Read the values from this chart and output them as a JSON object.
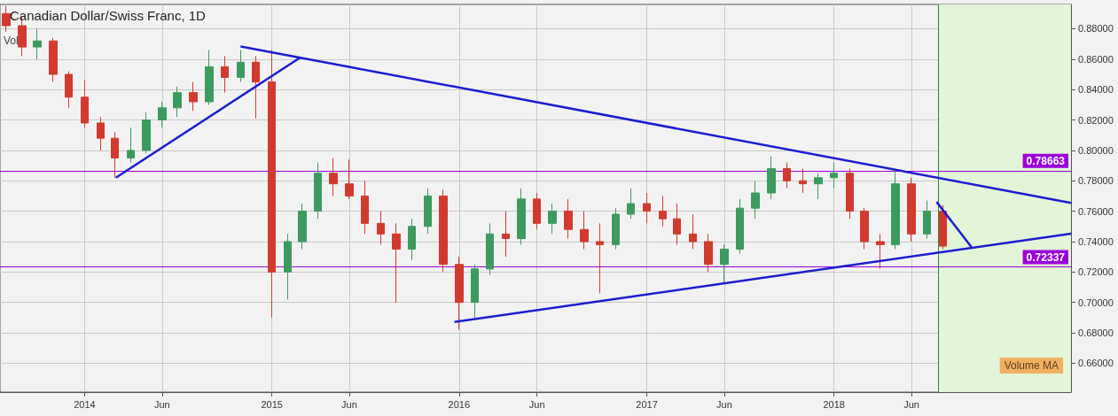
{
  "chart_data": {
    "type": "candlestick",
    "title": "Canadian Dollar/Swiss Franc, 1D",
    "x": [
      "2013-08",
      "2013-09",
      "2013-10",
      "2013-11",
      "2013-12",
      "2014-01",
      "2014-02",
      "2014-03",
      "2014-04",
      "2014-05",
      "2014-06",
      "2014-07",
      "2014-08",
      "2014-09",
      "2014-10",
      "2014-11",
      "2014-12",
      "2015-01",
      "2015-02",
      "2015-03",
      "2015-04",
      "2015-05",
      "2015-06",
      "2015-07",
      "2015-08",
      "2015-09",
      "2015-10",
      "2015-11",
      "2015-12",
      "2016-01",
      "2016-02",
      "2016-03",
      "2016-04",
      "2016-05",
      "2016-06",
      "2016-07",
      "2016-08",
      "2016-09",
      "2016-10",
      "2016-11",
      "2016-12",
      "2017-01",
      "2017-02",
      "2017-03",
      "2017-04",
      "2017-05",
      "2017-06",
      "2017-07",
      "2017-08",
      "2017-09",
      "2017-10",
      "2017-11",
      "2017-12",
      "2018-01",
      "2018-02",
      "2018-03",
      "2018-04",
      "2018-05",
      "2018-06",
      "2018-07",
      "2018-08"
    ],
    "ohlc": [
      [
        0.89,
        0.895,
        0.878,
        0.882
      ],
      [
        0.882,
        0.888,
        0.862,
        0.868
      ],
      [
        0.868,
        0.88,
        0.86,
        0.872
      ],
      [
        0.872,
        0.874,
        0.845,
        0.85
      ],
      [
        0.85,
        0.852,
        0.828,
        0.835
      ],
      [
        0.835,
        0.846,
        0.815,
        0.818
      ],
      [
        0.818,
        0.822,
        0.8,
        0.808
      ],
      [
        0.808,
        0.812,
        0.782,
        0.795
      ],
      [
        0.795,
        0.815,
        0.792,
        0.8
      ],
      [
        0.8,
        0.825,
        0.798,
        0.82
      ],
      [
        0.82,
        0.832,
        0.815,
        0.828
      ],
      [
        0.828,
        0.842,
        0.822,
        0.838
      ],
      [
        0.838,
        0.845,
        0.826,
        0.832
      ],
      [
        0.832,
        0.866,
        0.83,
        0.855
      ],
      [
        0.855,
        0.862,
        0.838,
        0.848
      ],
      [
        0.848,
        0.866,
        0.845,
        0.858
      ],
      [
        0.858,
        0.862,
        0.821,
        0.845
      ],
      [
        0.845,
        0.866,
        0.69,
        0.72
      ],
      [
        0.72,
        0.745,
        0.702,
        0.74
      ],
      [
        0.74,
        0.765,
        0.735,
        0.76
      ],
      [
        0.76,
        0.792,
        0.755,
        0.785
      ],
      [
        0.785,
        0.795,
        0.77,
        0.778
      ],
      [
        0.778,
        0.794,
        0.768,
        0.77
      ],
      [
        0.77,
        0.78,
        0.745,
        0.752
      ],
      [
        0.752,
        0.76,
        0.738,
        0.745
      ],
      [
        0.745,
        0.752,
        0.7,
        0.735
      ],
      [
        0.735,
        0.755,
        0.728,
        0.75
      ],
      [
        0.75,
        0.775,
        0.745,
        0.77
      ],
      [
        0.77,
        0.774,
        0.72,
        0.725
      ],
      [
        0.725,
        0.73,
        0.682,
        0.7
      ],
      [
        0.7,
        0.725,
        0.69,
        0.722
      ],
      [
        0.722,
        0.752,
        0.718,
        0.745
      ],
      [
        0.745,
        0.76,
        0.73,
        0.742
      ],
      [
        0.742,
        0.775,
        0.738,
        0.768
      ],
      [
        0.768,
        0.772,
        0.748,
        0.752
      ],
      [
        0.752,
        0.765,
        0.745,
        0.76
      ],
      [
        0.76,
        0.768,
        0.742,
        0.748
      ],
      [
        0.748,
        0.76,
        0.735,
        0.74
      ],
      [
        0.74,
        0.752,
        0.706,
        0.738
      ],
      [
        0.738,
        0.762,
        0.735,
        0.758
      ],
      [
        0.758,
        0.775,
        0.755,
        0.765
      ],
      [
        0.765,
        0.772,
        0.752,
        0.76
      ],
      [
        0.76,
        0.77,
        0.75,
        0.755
      ],
      [
        0.755,
        0.765,
        0.738,
        0.745
      ],
      [
        0.745,
        0.758,
        0.735,
        0.74
      ],
      [
        0.74,
        0.745,
        0.72,
        0.725
      ],
      [
        0.725,
        0.738,
        0.712,
        0.735
      ],
      [
        0.735,
        0.768,
        0.732,
        0.762
      ],
      [
        0.762,
        0.78,
        0.755,
        0.772
      ],
      [
        0.772,
        0.796,
        0.768,
        0.788
      ],
      [
        0.788,
        0.792,
        0.775,
        0.78
      ],
      [
        0.78,
        0.788,
        0.772,
        0.778
      ],
      [
        0.778,
        0.785,
        0.768,
        0.782
      ],
      [
        0.782,
        0.792,
        0.775,
        0.785
      ],
      [
        0.785,
        0.788,
        0.755,
        0.76
      ],
      [
        0.76,
        0.762,
        0.735,
        0.74
      ],
      [
        0.74,
        0.745,
        0.722,
        0.738
      ],
      [
        0.738,
        0.787,
        0.735,
        0.778
      ],
      [
        0.778,
        0.782,
        0.74,
        0.745
      ],
      [
        0.745,
        0.767,
        0.742,
        0.76
      ],
      [
        0.76,
        0.764,
        0.735,
        0.737
      ]
    ],
    "series": [
      {
        "type": "line",
        "color": "#1c1cd0",
        "x": [
          "2014-03-03",
          "2015-02-24"
        ],
        "values": [
          0.782,
          0.8608
        ]
      },
      {
        "type": "line",
        "color": "#1c1cd0",
        "x": [
          "2014-11-01",
          "2019-04-08"
        ],
        "values": [
          0.8684,
          0.7655
        ]
      },
      {
        "type": "line",
        "color": "#1c1cd0",
        "x": [
          "2015-12-23",
          "2019-04-08"
        ],
        "values": [
          0.6871,
          0.7452
        ]
      },
      {
        "type": "line",
        "color": "#1c1cd0",
        "x": [
          "2018-07-20",
          "2018-09-27"
        ],
        "values": [
          0.7661,
          0.7359
        ]
      }
    ],
    "xlim": [
      "2013-07-20",
      "2019-04-08"
    ],
    "xticks": [
      {
        "value": "2014-01-01",
        "label": "2014"
      },
      {
        "value": "2014-06-01",
        "label": "Jun"
      },
      {
        "value": "2015-01-01",
        "label": "2015"
      },
      {
        "value": "2015-06-01",
        "label": "Jun"
      },
      {
        "value": "2016-01-01",
        "label": "2016"
      },
      {
        "value": "2016-06-01",
        "label": "Jun"
      },
      {
        "value": "2017-01-01",
        "label": "2017"
      },
      {
        "value": "2017-06-01",
        "label": "Jun"
      },
      {
        "value": "2018-01-01",
        "label": "2018"
      },
      {
        "value": "2018-06-01",
        "label": "Jun"
      }
    ],
    "ylim": [
      0.641,
      0.896
    ],
    "yticks": [
      {
        "value": 0.66,
        "label": "0.66000"
      },
      {
        "value": 0.68,
        "label": "0.68000"
      },
      {
        "value": 0.7,
        "label": "0.70000"
      },
      {
        "value": 0.72,
        "label": "0.72000"
      },
      {
        "value": 0.74,
        "label": "0.74000"
      },
      {
        "value": 0.76,
        "label": "0.76000"
      },
      {
        "value": 0.78,
        "label": "0.78000"
      },
      {
        "value": 0.8,
        "label": "0.80000"
      },
      {
        "value": 0.82,
        "label": "0.82000"
      },
      {
        "value": 0.84,
        "label": "0.84000"
      },
      {
        "value": 0.86,
        "label": "0.86000"
      },
      {
        "value": 0.88,
        "label": "0.88000"
      }
    ],
    "ref_lines": [
      {
        "axis": "y",
        "value": 0.78663,
        "label": "0.78663",
        "color": "#9b00d9"
      },
      {
        "axis": "y",
        "value": 0.72337,
        "label": "0.72337",
        "color": "#9b00d9"
      },
      {
        "axis": "x",
        "value": "2018-07-24",
        "color": "#2e8b2e"
      }
    ],
    "bands": [
      {
        "axis": "x",
        "from": "2018-07-24",
        "to": "2019-04-08",
        "color": "#e2f5d8"
      }
    ],
    "annotations": [
      "Vol",
      "Volume MA"
    ],
    "grid": true
  }
}
